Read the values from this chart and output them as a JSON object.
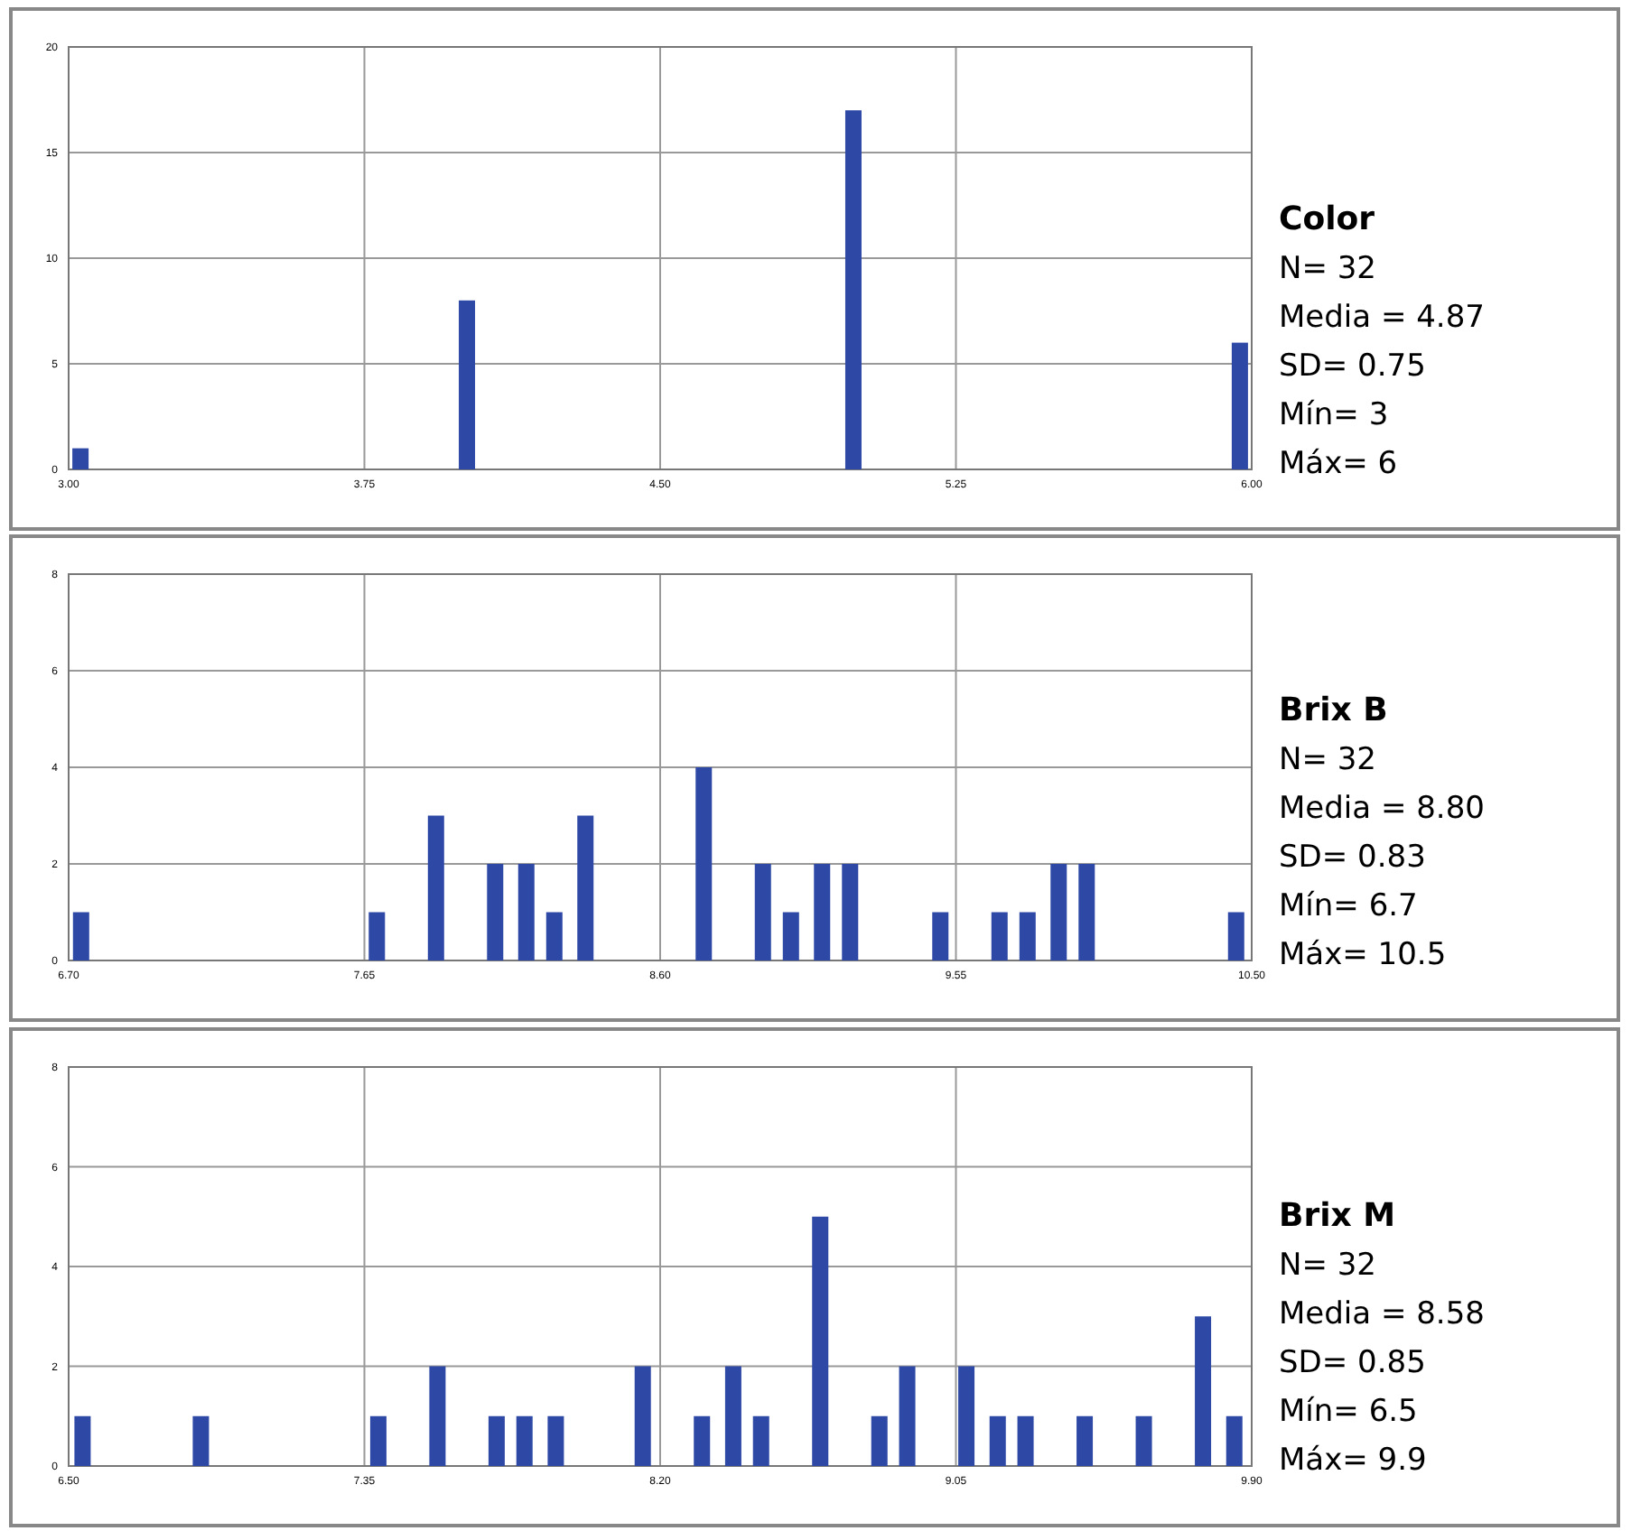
{
  "chart_data": [
    {
      "type": "bar",
      "annotations": [
        "Color",
        "N= 32",
        "Media = 4.87",
        "SD= 0.75",
        "Mín=  3",
        "Máx= 6"
      ],
      "x": [
        3.03,
        4.01,
        4.99,
        5.97
      ],
      "values": [
        1,
        8,
        17,
        6
      ],
      "color": "#2e48a6",
      "xlim": [
        3,
        6
      ],
      "xticks": [
        {
          "value": 3,
          "label": "3.00"
        },
        {
          "value": 3.75,
          "label": "3.75"
        },
        {
          "value": 4.5,
          "label": "4.50"
        },
        {
          "value": 5.25,
          "label": "5.25"
        },
        {
          "value": 6,
          "label": "6.00"
        }
      ],
      "ylim": [
        0,
        20
      ],
      "yticks": [
        0,
        5,
        10,
        15,
        20
      ],
      "grid": true
    },
    {
      "type": "bar",
      "annotations": [
        "Brix B",
        "N= 32",
        "Media = 8.80",
        "SD= 0.83",
        "Mín=  6.7",
        "Máx= 10.5"
      ],
      "x": [
        6.74,
        7.69,
        7.88,
        8.07,
        8.17,
        8.26,
        8.36,
        8.74,
        8.93,
        9.02,
        9.12,
        9.21,
        9.5,
        9.69,
        9.78,
        9.88,
        9.97,
        10.45
      ],
      "values": [
        1,
        1,
        3,
        2,
        2,
        1,
        3,
        4,
        2,
        1,
        2,
        2,
        1,
        1,
        1,
        2,
        2,
        1
      ],
      "color": "#2e48a6",
      "xlim": [
        6.7,
        10.5
      ],
      "xticks": [
        {
          "value": 6.7,
          "label": "6.70"
        },
        {
          "value": 7.65,
          "label": "7.65"
        },
        {
          "value": 8.6,
          "label": "8.60"
        },
        {
          "value": 9.55,
          "label": "9.55"
        },
        {
          "value": 10.5,
          "label": "10.50"
        }
      ],
      "ylim": [
        0,
        8
      ],
      "yticks": [
        0,
        2,
        4,
        6,
        8
      ],
      "grid": true
    },
    {
      "type": "bar",
      "annotations": [
        "Brix M",
        "N= 32",
        "Media = 8.58",
        "SD= 0.85",
        "Mín=  6.5",
        "Máx= 9.9"
      ],
      "x": [
        6.54,
        6.88,
        7.39,
        7.56,
        7.73,
        7.81,
        7.9,
        8.15,
        8.32,
        8.41,
        8.49,
        8.66,
        8.83,
        8.91,
        9.08,
        9.17,
        9.25,
        9.42,
        9.59,
        9.76,
        9.85
      ],
      "values": [
        1,
        1,
        1,
        2,
        1,
        1,
        1,
        2,
        1,
        2,
        1,
        5,
        1,
        2,
        2,
        1,
        1,
        1,
        1,
        3,
        1
      ],
      "color": "#2e48a6",
      "xlim": [
        6.5,
        9.9
      ],
      "xticks": [
        {
          "value": 6.5,
          "label": "6.50"
        },
        {
          "value": 7.35,
          "label": "7.35"
        },
        {
          "value": 8.2,
          "label": "8.20"
        },
        {
          "value": 9.05,
          "label": "9.05"
        },
        {
          "value": 9.9,
          "label": "9.90"
        }
      ],
      "ylim": [
        0,
        8
      ],
      "yticks": [
        0,
        2,
        4,
        6,
        8
      ],
      "grid": true
    }
  ]
}
